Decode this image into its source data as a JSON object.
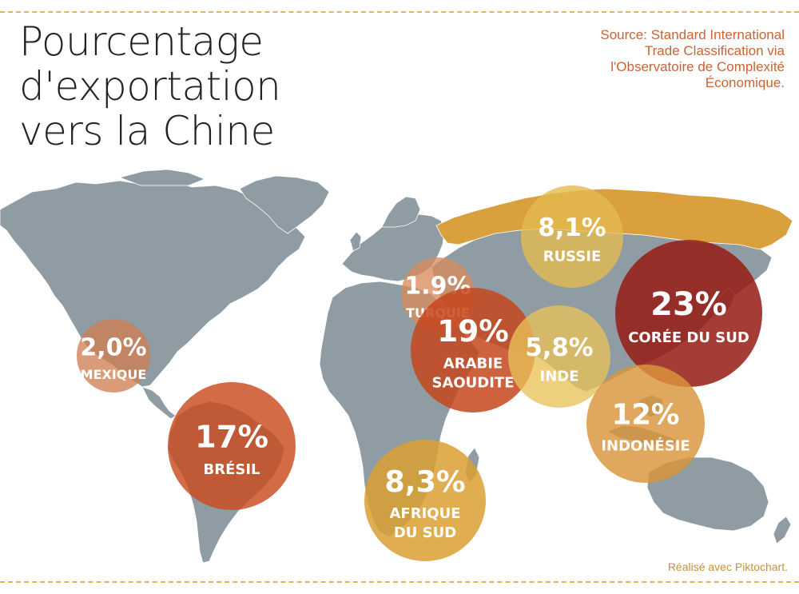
{
  "title_lines": [
    "Pourcentage d'exportation",
    "vers la Chine"
  ],
  "source_lines": [
    "Source: Standard International",
    "Trade Classification via",
    "l'Observatoire de Complexité",
    "Économique."
  ],
  "credit": "Réalisé avec Piktochart.",
  "colors": {
    "land": "#8f9ca3",
    "russia": "#d9a03d",
    "accent": "#e3b35c"
  },
  "chart_data": {
    "type": "bubble-map",
    "title": "Pourcentage d'exportation vers la Chine",
    "points": [
      {
        "country": "Mexique",
        "label": "2,0%",
        "value": 2.0,
        "name_lines": [
          "MEXIQUE"
        ],
        "color": "#cf7f52"
      },
      {
        "country": "Brésil",
        "label": "17%",
        "value": 17,
        "name_lines": [
          "BRÉSIL"
        ],
        "color": "#c94a1f"
      },
      {
        "country": "Turquie",
        "label": "1.9%",
        "value": 1.9,
        "name_lines": [
          "TURQUIE"
        ],
        "color": "#d98c5e"
      },
      {
        "country": "Arabie Saoudite",
        "label": "19%",
        "value": 19,
        "name_lines": [
          "ARABIE",
          "SAOUDITE"
        ],
        "color": "#c6461c"
      },
      {
        "country": "Afrique du Sud",
        "label": "8,3%",
        "value": 8.3,
        "name_lines": [
          "AFRIQUE",
          "DU SUD"
        ],
        "color": "#dba032"
      },
      {
        "country": "Russie",
        "label": "8,1%",
        "value": 8.1,
        "name_lines": [
          "RUSSIE"
        ],
        "color": "#e4ba50"
      },
      {
        "country": "Inde",
        "label": "5,8%",
        "value": 5.8,
        "name_lines": [
          "INDE"
        ],
        "color": "#e8c25a"
      },
      {
        "country": "Corée du Sud",
        "label": "23%",
        "value": 23,
        "name_lines": [
          "CORÉE DU SUD"
        ],
        "color": "#961c14"
      },
      {
        "country": "Indonésie",
        "label": "12%",
        "value": 12,
        "name_lines": [
          "INDONÉSIE"
        ],
        "color": "#d9953a"
      }
    ]
  }
}
